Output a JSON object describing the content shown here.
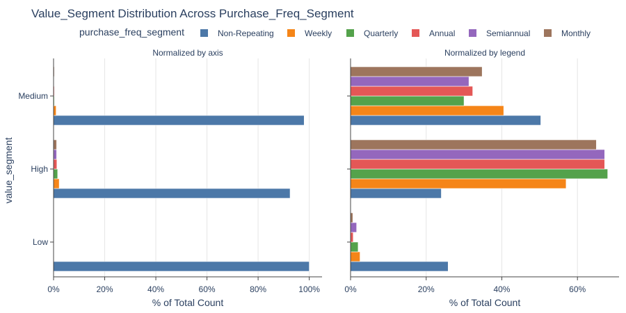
{
  "chart_data": {
    "type": "bar",
    "orientation": "horizontal",
    "title": "Value_Segment Distribution Across Purchase_Freq_Segment",
    "legend_title": "purchase_freq_segment",
    "legend_position": "top",
    "ylabel": "value_segment",
    "categories": [
      "Low",
      "High",
      "Medium"
    ],
    "series_names": [
      "Non-Repeating",
      "Weekly",
      "Quarterly",
      "Annual",
      "Semiannual",
      "Monthly"
    ],
    "colors": [
      "#4c78a8",
      "#f58518",
      "#54a24b",
      "#e45756",
      "#9467bd",
      "#9d755d"
    ],
    "panels": [
      {
        "subtitle": "Normalized by axis",
        "xlabel": "% of Total Count",
        "xlim": [
          0,
          1.05
        ],
        "xticks": [
          0,
          0.2,
          0.4,
          0.6,
          0.8,
          1.0
        ],
        "xtick_labels": [
          "0%",
          "20%",
          "40%",
          "60%",
          "80%",
          "100%"
        ],
        "show_y_tick_labels": true,
        "series": [
          {
            "name": "Non-Repeating",
            "values": [
              1.0,
              0.925,
              0.98
            ]
          },
          {
            "name": "Weekly",
            "values": [
              0.0,
              0.022,
              0.01
            ]
          },
          {
            "name": "Quarterly",
            "values": [
              0.0,
              0.016,
              0.003
            ]
          },
          {
            "name": "Annual",
            "values": [
              0.0,
              0.013,
              0.003
            ]
          },
          {
            "name": "Semiannual",
            "values": [
              0.0,
              0.012,
              0.002
            ]
          },
          {
            "name": "Monthly",
            "values": [
              0.0,
              0.012,
              0.003
            ]
          }
        ]
      },
      {
        "subtitle": "Normalized by legend",
        "xlabel": "% of Total Count",
        "xlim": [
          0,
          0.71
        ],
        "xticks": [
          0,
          0.2,
          0.4,
          0.6
        ],
        "xtick_labels": [
          "0%",
          "20%",
          "40%",
          "60%"
        ],
        "show_y_tick_labels": false,
        "series": [
          {
            "name": "Non-Repeating",
            "values": [
              0.258,
              0.24,
              0.503
            ]
          },
          {
            "name": "Weekly",
            "values": [
              0.025,
              0.57,
              0.405
            ]
          },
          {
            "name": "Quarterly",
            "values": [
              0.02,
              0.68,
              0.3
            ]
          },
          {
            "name": "Annual",
            "values": [
              0.007,
              0.672,
              0.323
            ]
          },
          {
            "name": "Semiannual",
            "values": [
              0.016,
              0.672,
              0.313
            ]
          },
          {
            "name": "Monthly",
            "values": [
              0.006,
              0.65,
              0.348
            ]
          }
        ]
      }
    ]
  }
}
